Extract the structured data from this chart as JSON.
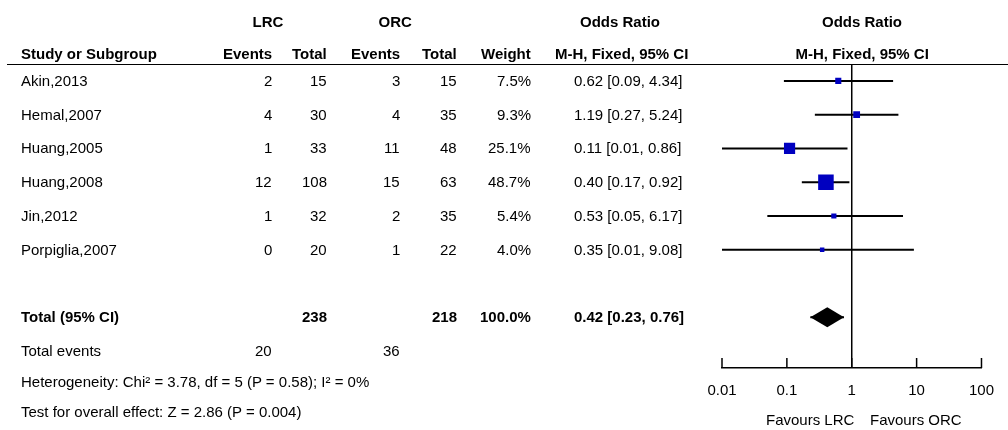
{
  "chart_data": [
    {
      "type": "other",
      "annotations": [
        "LRC",
        "ORC",
        "Odds Ratio",
        "Study or Subgroup",
        "Events",
        "Total",
        "Events",
        "Total",
        "Weight",
        "M-H, Fixed, 95% CI",
        "Akin,2013",
        "2",
        "15",
        "3",
        "15",
        "7.5%",
        "0.62 [0.09, 4.34]",
        "Hemal,2007",
        "4",
        "30",
        "4",
        "35",
        "9.3%",
        "1.19 [0.27, 5.24]",
        "Huang,2005",
        "1",
        "33",
        "11",
        "48",
        "25.1%",
        "0.11 [0.01, 0.86]",
        "Huang,2008",
        "12",
        "108",
        "15",
        "63",
        "48.7%",
        "0.40 [0.17, 0.92]",
        "Jin,2012",
        "1",
        "32",
        "2",
        "35",
        "5.4%",
        "0.53 [0.05, 6.17]",
        "Porpiglia,2007",
        "0",
        "20",
        "1",
        "22",
        "4.0%",
        "0.35 [0.01, 9.08]",
        "Total (95% CI)",
        "238",
        "218",
        "100.0%",
        "0.42 [0.23, 0.76]",
        "Total events",
        "20",
        "36",
        "Heterogeneity: Chi² = 3.78, df = 5 (P = 0.58); I² = 0%",
        "Test for overall effect: Z = 2.86 (P = 0.004)"
      ]
    },
    {
      "type": "scatter",
      "title": "Odds Ratio",
      "subtitle": "M-H, Fixed, 95% CI",
      "orientation": "horizontal",
      "categories": [
        null,
        null,
        null,
        null,
        null,
        null,
        null,
        null,
        null
      ],
      "series": [
        {
          "type": "scatter",
          "marker": "square",
          "color": "#0000c0",
          "values": [
            0.62,
            1.19,
            0.11,
            0.4,
            0.53,
            0.35,
            null,
            null,
            null
          ],
          "errors": [
            [
              0.09,
              4.34
            ],
            [
              0.27,
              5.24
            ],
            [
              0.01,
              0.86
            ],
            [
              0.17,
              0.92
            ],
            [
              0.05,
              6.17
            ],
            [
              0.01,
              9.08
            ],
            null,
            null,
            null
          ],
          "sizes": [
            0.154,
            0.191,
            0.515,
            1,
            0.111,
            0.082,
            null,
            null,
            null
          ]
        },
        {
          "type": "scatter",
          "marker": "diamond",
          "color": "#000000",
          "values": [
            null,
            null,
            null,
            null,
            null,
            null,
            null,
            0.42,
            null
          ],
          "errors": [
            null,
            null,
            null,
            null,
            null,
            null,
            null,
            [
              0.23,
              0.76
            ],
            null
          ]
        }
      ],
      "log": "x",
      "xlim": [
        0.01,
        100
      ],
      "xticks": [
        0.01,
        0.1,
        1,
        10,
        100
      ],
      "ref_lines": [
        {
          "axis": "x",
          "value": 1
        }
      ],
      "tick_labels": "x",
      "annotations": [
        "Favours LRC",
        "Favours ORC"
      ]
    }
  ]
}
